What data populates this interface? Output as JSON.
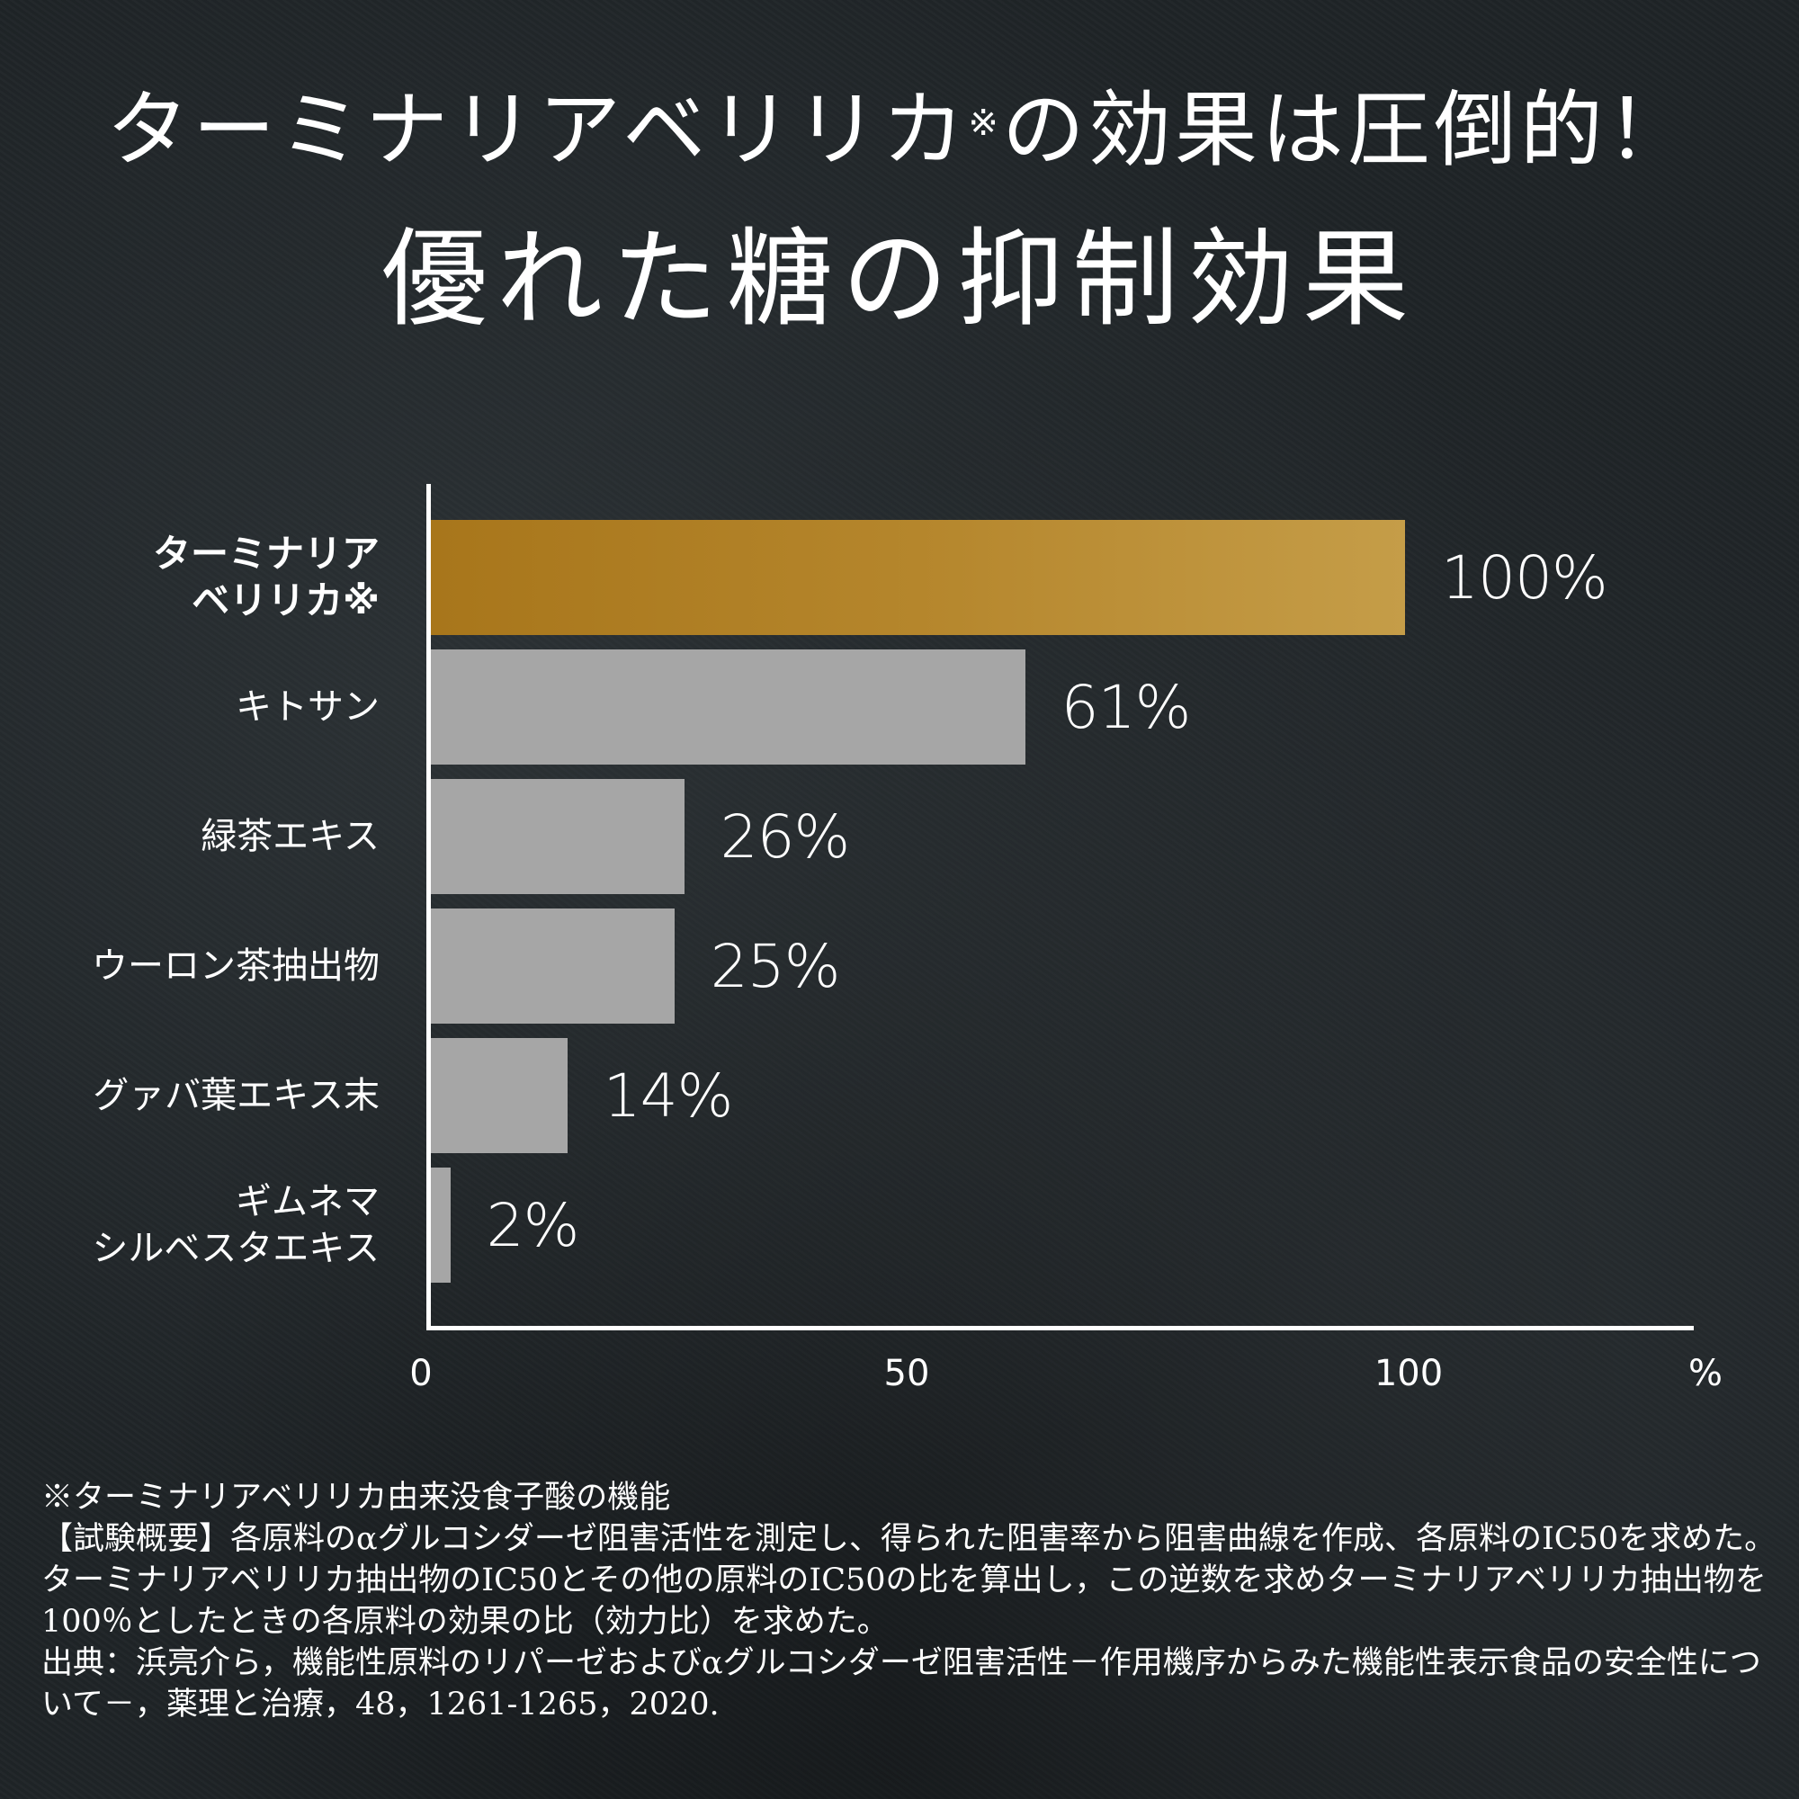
{
  "header": {
    "title_line1_main": "ターミナリアベリリカ",
    "title_line1_mark": "※",
    "title_line1_rest": "の効果は圧倒的！",
    "title_line2": "優れた糖の抑制効果"
  },
  "chart_data": {
    "type": "bar",
    "orientation": "horizontal",
    "title": "優れた糖の抑制効果",
    "categories": [
      "ターミナリアベリリカ※",
      "キトサン",
      "緑茶エキス",
      "ウーロン茶抽出物",
      "グァバ葉エキス末",
      "ギムネマシルベスタエキス"
    ],
    "category_labels_display": [
      "ターミナリア\nベリリカ※",
      "キトサン",
      "緑茶エキス",
      "ウーロン茶抽出物",
      "グァバ葉エキス末",
      "ギムネマ\nシルベスタエキス"
    ],
    "values": [
      100,
      61,
      26,
      25,
      14,
      2
    ],
    "value_labels": [
      "100%",
      "61%",
      "26%",
      "25%",
      "14%",
      "2%"
    ],
    "colors": [
      "#b5862c",
      "#a6a6a6",
      "#a6a6a6",
      "#a6a6a6",
      "#a6a6a6",
      "#a6a6a6"
    ],
    "xlabel": "%",
    "ylabel": "",
    "xlim": [
      0,
      120
    ],
    "xticks": [
      0,
      50,
      100
    ],
    "xtick_labels": [
      "0",
      "50",
      "100"
    ],
    "xunit_label": "%",
    "grid": false,
    "legend": null
  },
  "footnotes": {
    "note": "※ターミナリアベリリカ由来没食子酸の機能",
    "method": "【試験概要】各原料のαグルコシダーゼ阻害活性を測定し、得られた阻害率から阻害曲線を作成、各原料のIC50を求めた。ターミナリアベリリカ抽出物のIC50とその他の原料のIC50の比を算出し，この逆数を求めターミナリアベリリカ抽出物を100％としたときの各原料の効果の比（効力比）を求めた。",
    "source": "出典：浜亮介ら，機能性原料のリパーゼおよびαグルコシダーゼ阻害活性－作用機序からみた機能性表示食品の安全性について－，薬理と治療，48，1261-1265，2020."
  },
  "colors": {
    "background": "#1f2427",
    "highlight_bar": "#b5862c",
    "other_bar": "#a6a6a6",
    "text": "#ffffff"
  }
}
